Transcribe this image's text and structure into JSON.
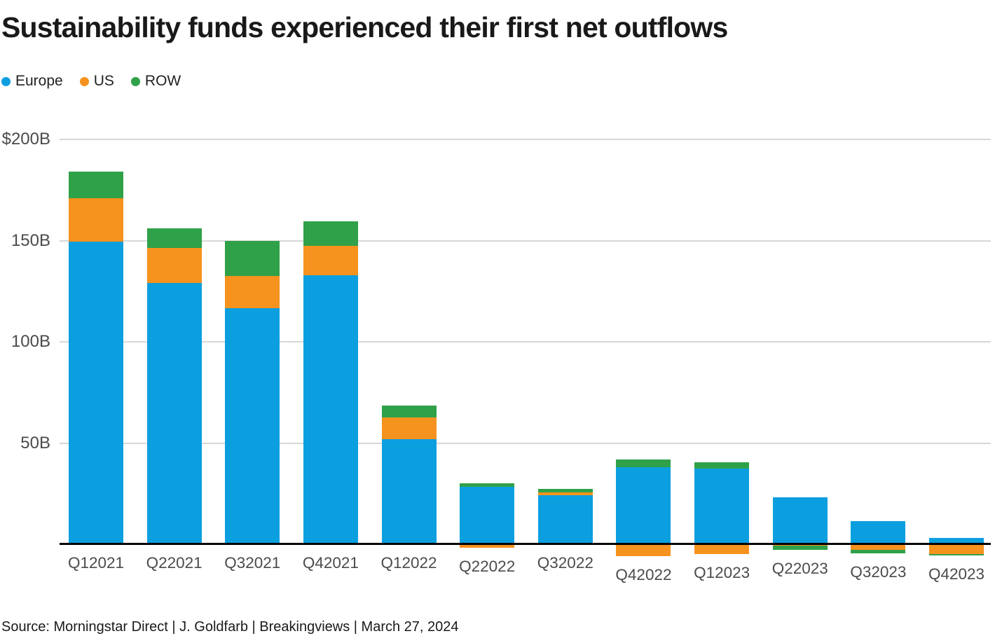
{
  "title": "Sustainability funds experienced their first net outflows",
  "source": "Source: Morningstar Direct | J. Goldfarb | Breakingviews | March 27, 2024",
  "colors": {
    "europe": "#0C9FE0",
    "us": "#F6921E",
    "row": "#2FA148",
    "gridline": "#D7D7D7",
    "axis": "#000000",
    "tick_text": "#4B4B4B",
    "title_text": "#191919"
  },
  "chart_data": {
    "type": "bar",
    "stacked": true,
    "title": "Sustainability funds experienced their first net outflows",
    "xlabel": "",
    "ylabel": "",
    "unit": "$B",
    "grid": "horizontal",
    "legend_position": "top-left",
    "ylim": [
      -15,
      210
    ],
    "baseline": 0,
    "categories": [
      "Q12021",
      "Q22021",
      "Q32021",
      "Q42021",
      "Q12022",
      "Q22022",
      "Q32022",
      "Q42022",
      "Q12023",
      "Q22023",
      "Q32023",
      "Q42023"
    ],
    "series": [
      {
        "name": "Europe",
        "color": "#0C9FE0",
        "values": [
          149.5,
          129,
          116.5,
          133,
          52,
          28.5,
          24.3,
          38,
          37.3,
          23.2,
          11.5,
          3
        ]
      },
      {
        "name": "US",
        "color": "#F6921E",
        "values": [
          21.5,
          17.5,
          16,
          14.5,
          10.5,
          -1.8,
          1.3,
          -6,
          -5,
          -0.6,
          -2.6,
          -4.9
        ]
      },
      {
        "name": "ROW",
        "color": "#2FA148",
        "values": [
          13,
          9.5,
          17.5,
          12,
          6,
          1.5,
          1.6,
          3.9,
          3.2,
          -2.1,
          -2,
          -0.8
        ]
      }
    ],
    "y_ticks": [
      {
        "value": 200,
        "label": "$200B"
      },
      {
        "value": 150,
        "label": "150B"
      },
      {
        "value": 100,
        "label": "100B"
      },
      {
        "value": 50,
        "label": "50B"
      }
    ]
  }
}
